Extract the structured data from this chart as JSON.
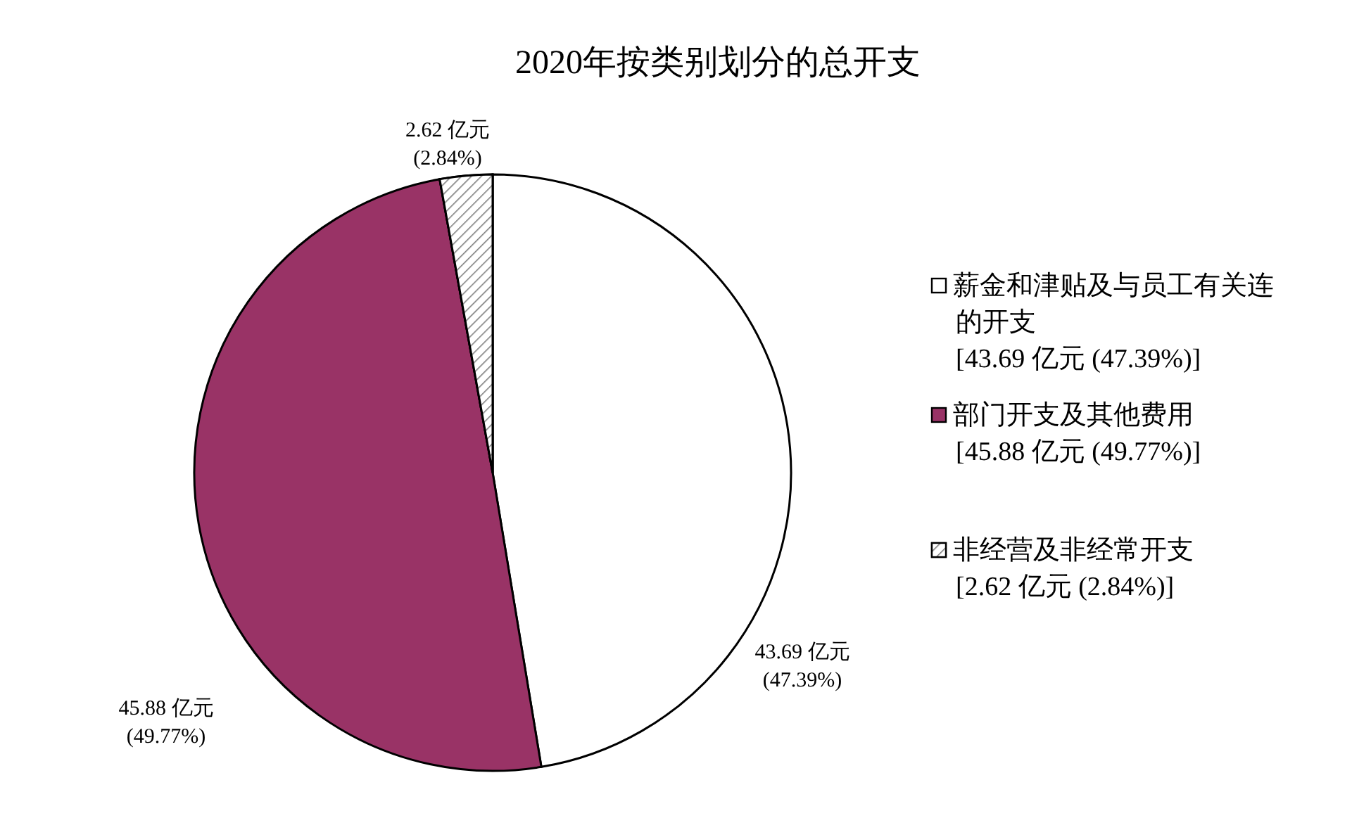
{
  "chart_data": {
    "type": "pie",
    "title": "2020年按类别划分的总开支",
    "categories": [
      "薪金和津贴及与员工有关连的开支\n[43.69 亿元 (47.39%)]",
      "部门开支及其他费用\n[45.88 亿元 (49.77%)]",
      "非经营及非经常开支\n[2.62 亿元 (2.84%)]"
    ],
    "values": [
      43.69,
      45.88,
      2.62
    ],
    "colors": [
      "#ffffff",
      "#993366",
      "#ffffff"
    ],
    "value_labels": [
      "43.69 亿元\n(47.39%)",
      "45.88 亿元\n(49.77%)",
      "2.62 亿元\n(2.84%)"
    ],
    "legend": "right"
  }
}
